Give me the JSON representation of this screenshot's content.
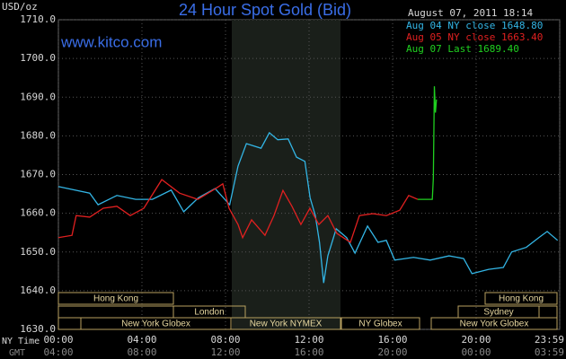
{
  "chart_data": {
    "type": "line",
    "title": "24 Hour Spot Gold (Bid)",
    "subtitle": "www.kitco.com",
    "timestamp": "August 07, 2011 18:14",
    "y_label": "USD/oz",
    "x_label": "NY Time",
    "x2_label": "GMT",
    "ylim": [
      1630,
      1710
    ],
    "yticks": [
      {
        "value": 1630,
        "label": "1630.0"
      },
      {
        "value": 1640,
        "label": "1640.0"
      },
      {
        "value": 1650,
        "label": "1650.0"
      },
      {
        "value": 1660,
        "label": "1660.0"
      },
      {
        "value": 1670,
        "label": "1670.0"
      },
      {
        "value": 1680,
        "label": "1680.0"
      },
      {
        "value": 1690,
        "label": "1690.0"
      },
      {
        "value": 1700,
        "label": "1700.0"
      },
      {
        "value": 1710,
        "label": "1710.0"
      }
    ],
    "xlim": [
      0,
      24
    ],
    "xticks": [
      {
        "value": 0,
        "label": "00:00"
      },
      {
        "value": 4,
        "label": "04:00"
      },
      {
        "value": 8,
        "label": "08:00"
      },
      {
        "value": 12,
        "label": "12:00"
      },
      {
        "value": 16,
        "label": "16:00"
      },
      {
        "value": 20,
        "label": "20:00"
      },
      {
        "value": 24,
        "label": "23:59"
      }
    ],
    "x2ticks": [
      "04:00",
      "08:00",
      "12:00",
      "16:00",
      "20:00",
      "00:00",
      "03:59"
    ],
    "grid": true,
    "sessions": [
      "Hong Kong",
      "London",
      "New York Globex",
      "New York NYMEX",
      "NY Globex",
      "Hong Kong",
      "Sydney",
      "New York Globex"
    ],
    "series": [
      {
        "name": "Aug 04 NY close 1648.80",
        "color": "#33b5e5",
        "x": [
          0,
          1.5,
          1.9,
          2.8,
          3.7,
          4.5,
          5.4,
          6,
          6.7,
          7.5,
          8.2,
          8.6,
          9,
          9.7,
          10.1,
          10.5,
          11,
          11.4,
          11.8,
          12.05,
          12.3,
          12.5,
          12.7,
          12.9,
          13.3,
          13.8,
          14.2,
          14.8,
          15.3,
          15.7,
          16.1,
          17,
          17.8,
          18.7,
          19.4,
          19.8,
          20.6,
          21.3,
          21.7,
          22.4,
          23,
          23.4,
          23.9
        ],
        "values": [
          1666.9,
          1665.2,
          1662.2,
          1664.6,
          1663.6,
          1663.6,
          1666,
          1660.4,
          1664,
          1666.4,
          1662.2,
          1672.2,
          1678,
          1676.8,
          1680.8,
          1679,
          1679.2,
          1674.5,
          1673.4,
          1664,
          1659.4,
          1652.5,
          1642,
          1649,
          1656,
          1653.7,
          1649.7,
          1656.7,
          1652.5,
          1653,
          1647.9,
          1648.6,
          1647.9,
          1649,
          1648.3,
          1644.4,
          1645.5,
          1646,
          1650,
          1651.2,
          1653.7,
          1655.3,
          1653
        ]
      },
      {
        "name": "Aug 05 NY close 1663.40",
        "color": "#e02020",
        "x": [
          0,
          0.65,
          0.85,
          1.5,
          2.15,
          2.8,
          3.44,
          4.09,
          4.95,
          5.8,
          6.67,
          7.53,
          7.87,
          8.17,
          8.6,
          8.82,
          9.25,
          9.89,
          10.32,
          10.75,
          11.18,
          11.61,
          12.04,
          12.47,
          12.9,
          13.33,
          13.98,
          14.41,
          15.05,
          15.7,
          16.34,
          16.77,
          17.2
        ],
        "values": [
          1653.7,
          1654.3,
          1659.4,
          1659,
          1661.3,
          1661.8,
          1659.4,
          1661.3,
          1668.7,
          1665.2,
          1663.6,
          1666.4,
          1667.6,
          1661.3,
          1657.1,
          1653.7,
          1658.3,
          1654.3,
          1659.4,
          1665.9,
          1661.8,
          1657.1,
          1661.3,
          1657.1,
          1659.4,
          1654.8,
          1652.5,
          1659.4,
          1659.9,
          1659.4,
          1660.8,
          1664.6,
          1663.6
        ]
      },
      {
        "name": "Aug 07 Last 1689.40",
        "color": "#20d020",
        "x": [
          17.2,
          17.9,
          17.95,
          18.0,
          18.05,
          18.1
        ],
        "values": [
          1663.6,
          1663.6,
          1669,
          1692.8,
          1686,
          1689.4
        ]
      }
    ]
  }
}
